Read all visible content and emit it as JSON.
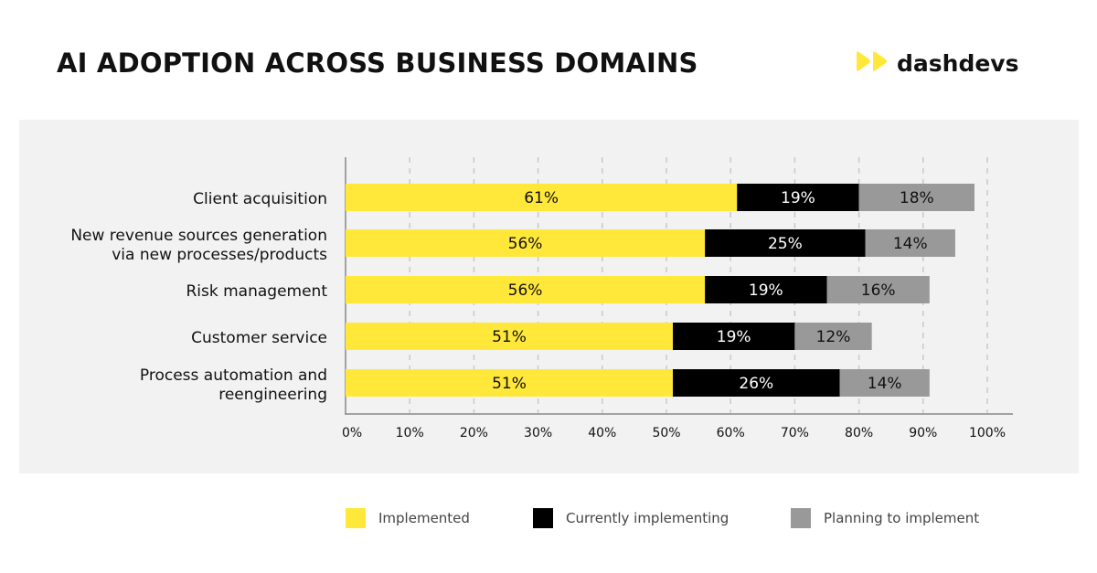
{
  "header": {
    "title": "AI ADOPTION ACROSS BUSINESS DOMAINS",
    "logo_text": "dashdevs",
    "logo_icon": "double-play-icon"
  },
  "colors": {
    "implemented": "#ffe83a",
    "currently_implementing": "#000000",
    "planning": "#999999",
    "panel": "#f2f2f2",
    "logo_accent": "#ffe83a"
  },
  "chart_data": {
    "type": "bar",
    "orientation": "horizontal",
    "stacked": true,
    "title": "AI ADOPTION ACROSS BUSINESS DOMAINS",
    "categories": [
      [
        "Client acquisition"
      ],
      [
        "New revenue sources generation",
        "via new processes/products"
      ],
      [
        "Risk management"
      ],
      [
        "Customer service"
      ],
      [
        "Process automation and",
        "reengineering"
      ]
    ],
    "series": [
      {
        "name": "Implemented",
        "values": [
          61,
          56,
          56,
          51,
          51
        ],
        "labels": [
          "61%",
          "56%",
          "56%",
          "51%",
          "51%"
        ]
      },
      {
        "name": "Currently implementing",
        "values": [
          19,
          25,
          19,
          19,
          26
        ],
        "labels": [
          "19%",
          "25%",
          "19%",
          "19%",
          "26%"
        ]
      },
      {
        "name": "Planning to implement",
        "values": [
          18,
          14,
          16,
          12,
          14
        ],
        "labels": [
          "18%",
          "14%",
          "16%",
          "12%",
          "14%"
        ]
      }
    ],
    "xlim": [
      0,
      100
    ],
    "xticks": [
      "0%",
      "10%",
      "20%",
      "30%",
      "40%",
      "50%",
      "60%",
      "70%",
      "80%",
      "90%",
      "100%"
    ],
    "grid": "vertical dashed",
    "legend_position": "bottom"
  }
}
